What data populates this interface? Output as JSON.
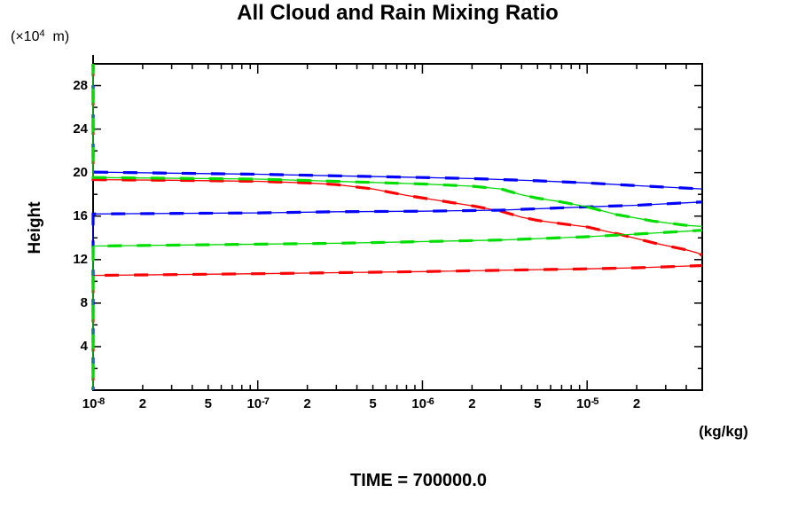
{
  "chart_data": {
    "type": "line",
    "title": "All Cloud and Rain Mixing Ratio",
    "xlabel": "(kg/kg)",
    "ylabel": "Height",
    "y_unit": {
      "pre": "(×10",
      "sup": "4",
      "post": "  m)"
    },
    "annotation": "TIME = 700000.0",
    "x_scale": "log",
    "xlim": [
      1e-08,
      5e-05
    ],
    "ylim": [
      0,
      30
    ],
    "grid": false,
    "legend": "none",
    "x_axis": {
      "decades": [
        -8,
        -7,
        -6,
        -5
      ],
      "minor_multiples": [
        2,
        3,
        4,
        5,
        6,
        7,
        8,
        9
      ],
      "tick_labels": [
        {
          "value": 1e-08,
          "text": "10",
          "sup": "-8"
        },
        {
          "value": 2e-08,
          "text": "2"
        },
        {
          "value": 5e-08,
          "text": "5"
        },
        {
          "value": 1e-07,
          "text": "10",
          "sup": "-7"
        },
        {
          "value": 2e-07,
          "text": "2"
        },
        {
          "value": 5e-07,
          "text": "5"
        },
        {
          "value": 1e-06,
          "text": "10",
          "sup": "-6"
        },
        {
          "value": 2e-06,
          "text": "2"
        },
        {
          "value": 5e-06,
          "text": "5"
        },
        {
          "value": 1e-05,
          "text": "10",
          "sup": "-5"
        },
        {
          "value": 2e-05,
          "text": "2"
        }
      ]
    },
    "y_axis": {
      "minor_step": 2,
      "major_step": 4,
      "tick_labels": [
        {
          "value": 28,
          "text": "28"
        },
        {
          "value": 24,
          "text": "24"
        },
        {
          "value": 20,
          "text": "20"
        },
        {
          "value": 16,
          "text": "16"
        },
        {
          "value": 12,
          "text": "12"
        },
        {
          "value": 8,
          "text": "8"
        },
        {
          "value": 4,
          "text": "4"
        }
      ]
    },
    "series": [
      {
        "name": "red-profile",
        "color": "#ff0000",
        "dashoffset": 2,
        "branches": [
          [
            [
              1e-08,
              30
            ],
            [
              1e-08,
              19.35
            ],
            [
              3e-08,
              19.3
            ],
            [
              1e-07,
              19.2
            ],
            [
              2e-07,
              19.05
            ],
            [
              3e-07,
              18.9
            ],
            [
              5e-07,
              18.5
            ],
            [
              8e-07,
              17.9
            ],
            [
              1.5e-06,
              17.25
            ],
            [
              2e-06,
              16.95
            ],
            [
              3e-06,
              16.45
            ],
            [
              4e-06,
              15.9
            ],
            [
              5e-06,
              15.6
            ],
            [
              7e-06,
              15.3
            ],
            [
              1e-05,
              15.0
            ],
            [
              1.6e-05,
              14.3
            ],
            [
              2.6e-05,
              13.5
            ],
            [
              4e-05,
              12.9
            ],
            [
              4.7e-05,
              12.6
            ],
            [
              5e-05,
              12.4
            ]
          ],
          [
            [
              5e-05,
              11.45
            ],
            [
              2e-05,
              11.25
            ],
            [
              1e-05,
              11.15
            ],
            [
              1e-06,
              10.9
            ],
            [
              1e-07,
              10.7
            ],
            [
              1e-08,
              10.55
            ],
            [
              1e-08,
              0
            ]
          ]
        ]
      },
      {
        "name": "blue-profile",
        "color": "#0000ff",
        "dashoffset": 9,
        "branches": [
          [
            [
              1e-08,
              30
            ],
            [
              1e-08,
              20.05
            ],
            [
              3e-08,
              19.95
            ],
            [
              1e-07,
              19.85
            ],
            [
              3e-07,
              19.7
            ],
            [
              1e-06,
              19.55
            ],
            [
              2e-06,
              19.45
            ],
            [
              5e-06,
              19.25
            ],
            [
              1e-05,
              19.05
            ],
            [
              2e-05,
              18.8
            ],
            [
              5e-05,
              18.5
            ]
          ],
          [
            [
              5e-05,
              17.3
            ],
            [
              2e-05,
              17.0
            ],
            [
              1e-05,
              16.85
            ],
            [
              3e-06,
              16.55
            ],
            [
              1e-06,
              16.45
            ],
            [
              3e-07,
              16.4
            ],
            [
              1e-07,
              16.3
            ],
            [
              1e-08,
              16.2
            ],
            [
              1e-08,
              0
            ]
          ]
        ]
      },
      {
        "name": "green-profile",
        "color": "#00dd00",
        "dashoffset": 5,
        "branches": [
          [
            [
              1e-08,
              30
            ],
            [
              1e-08,
              19.55
            ],
            [
              1e-07,
              19.4
            ],
            [
              3e-07,
              19.2
            ],
            [
              1e-06,
              18.95
            ],
            [
              2e-06,
              18.75
            ],
            [
              3e-06,
              18.5
            ],
            [
              4e-06,
              17.95
            ],
            [
              5e-06,
              17.65
            ],
            [
              7e-06,
              17.3
            ],
            [
              1e-05,
              16.85
            ],
            [
              1.5e-05,
              16.15
            ],
            [
              2.5e-05,
              15.55
            ],
            [
              4e-05,
              15.15
            ],
            [
              5e-05,
              15.05
            ]
          ],
          [
            [
              5e-05,
              14.7
            ],
            [
              2e-05,
              14.35
            ],
            [
              1e-05,
              14.1
            ],
            [
              3e-06,
              13.8
            ],
            [
              3e-07,
              13.5
            ],
            [
              1e-08,
              13.25
            ],
            [
              1e-08,
              0
            ]
          ]
        ]
      }
    ]
  }
}
